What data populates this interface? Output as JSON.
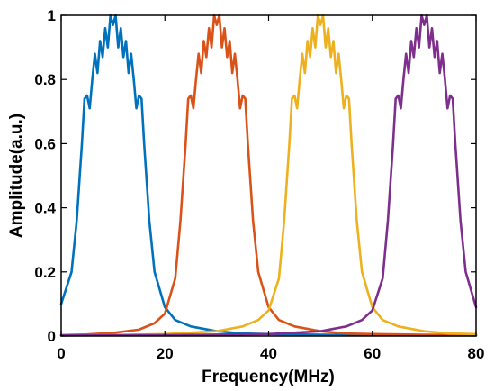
{
  "chart_data": {
    "type": "line",
    "title": "",
    "xlabel": "Frequency(MHz)",
    "ylabel": "Amplitude(a.u.)",
    "xlim": [
      0,
      80
    ],
    "ylim": [
      0,
      1
    ],
    "x_ticks": [
      0,
      20,
      40,
      60,
      80
    ],
    "y_ticks": [
      0,
      0.2,
      0.4,
      0.6,
      0.8,
      1
    ],
    "x_tick_labels": [
      "0",
      "20",
      "40",
      "60",
      "80"
    ],
    "y_tick_labels": [
      "0",
      "0.2",
      "0.4",
      "0.6",
      "0.8",
      "1"
    ],
    "grid": false,
    "legend": "none",
    "series": [
      {
        "color": "#0072BD",
        "x": [
          0,
          2,
          3,
          4,
          4.5,
          5,
          5.5,
          6,
          6.5,
          7,
          7.5,
          8,
          8.5,
          9,
          9.5,
          10,
          10.5,
          11,
          11.5,
          12,
          12.5,
          13,
          13.5,
          14,
          14.5,
          15,
          15.5,
          16,
          17,
          18,
          20,
          22,
          25,
          30,
          35,
          40,
          50,
          60,
          70,
          80
        ],
        "y": [
          0.1,
          0.2,
          0.36,
          0.6,
          0.74,
          0.75,
          0.71,
          0.8,
          0.88,
          0.82,
          0.92,
          0.87,
          0.96,
          0.9,
          1.0,
          0.97,
          1.0,
          0.9,
          0.96,
          0.87,
          0.92,
          0.82,
          0.88,
          0.8,
          0.71,
          0.75,
          0.74,
          0.6,
          0.36,
          0.2,
          0.09,
          0.05,
          0.03,
          0.015,
          0.008,
          0.006,
          0.004,
          0.003,
          0.002,
          0.002
        ]
      },
      {
        "color": "#D95319",
        "x": [
          0,
          5,
          10,
          15,
          18,
          20,
          22,
          23,
          24,
          24.5,
          25,
          25.5,
          26,
          26.5,
          27,
          27.5,
          28,
          28.5,
          29,
          29.5,
          30,
          30.5,
          31,
          31.5,
          32,
          32.5,
          33,
          33.5,
          34,
          34.5,
          35,
          35.5,
          36,
          37,
          38,
          40,
          42,
          45,
          50,
          55,
          60,
          70,
          80
        ],
        "y": [
          0.003,
          0.005,
          0.01,
          0.02,
          0.04,
          0.07,
          0.18,
          0.36,
          0.6,
          0.74,
          0.75,
          0.71,
          0.8,
          0.88,
          0.82,
          0.92,
          0.87,
          0.96,
          0.9,
          1.0,
          0.97,
          1.0,
          0.9,
          0.96,
          0.87,
          0.92,
          0.82,
          0.88,
          0.8,
          0.71,
          0.75,
          0.74,
          0.6,
          0.36,
          0.2,
          0.09,
          0.05,
          0.03,
          0.015,
          0.008,
          0.006,
          0.004,
          0.003
        ]
      },
      {
        "color": "#EDB120",
        "x": [
          0,
          10,
          20,
          30,
          35,
          38,
          40,
          42,
          43,
          44,
          44.5,
          45,
          45.5,
          46,
          46.5,
          47,
          47.5,
          48,
          48.5,
          49,
          49.5,
          50,
          50.5,
          51,
          51.5,
          52,
          52.5,
          53,
          53.5,
          54,
          54.5,
          55,
          55.5,
          56,
          57,
          58,
          60,
          62,
          65,
          70,
          75,
          80
        ],
        "y": [
          0.002,
          0.003,
          0.006,
          0.015,
          0.03,
          0.05,
          0.08,
          0.18,
          0.36,
          0.6,
          0.74,
          0.75,
          0.71,
          0.8,
          0.88,
          0.82,
          0.92,
          0.87,
          0.96,
          0.9,
          1.0,
          0.97,
          1.0,
          0.9,
          0.96,
          0.87,
          0.92,
          0.82,
          0.88,
          0.8,
          0.71,
          0.75,
          0.74,
          0.6,
          0.36,
          0.2,
          0.09,
          0.05,
          0.03,
          0.015,
          0.008,
          0.006
        ]
      },
      {
        "color": "#7E2F8E",
        "x": [
          0,
          20,
          40,
          50,
          55,
          58,
          60,
          62,
          63,
          64,
          64.5,
          65,
          65.5,
          66,
          66.5,
          67,
          67.5,
          68,
          68.5,
          69,
          69.5,
          70,
          70.5,
          71,
          71.5,
          72,
          72.5,
          73,
          73.5,
          74,
          74.5,
          75,
          75.5,
          76,
          77,
          78,
          80
        ],
        "y": [
          0.002,
          0.003,
          0.006,
          0.015,
          0.03,
          0.05,
          0.08,
          0.18,
          0.36,
          0.6,
          0.74,
          0.75,
          0.71,
          0.8,
          0.88,
          0.82,
          0.92,
          0.87,
          0.96,
          0.9,
          1.0,
          0.97,
          1.0,
          0.9,
          0.96,
          0.87,
          0.92,
          0.82,
          0.88,
          0.8,
          0.71,
          0.75,
          0.74,
          0.6,
          0.36,
          0.2,
          0.09
        ]
      }
    ]
  }
}
